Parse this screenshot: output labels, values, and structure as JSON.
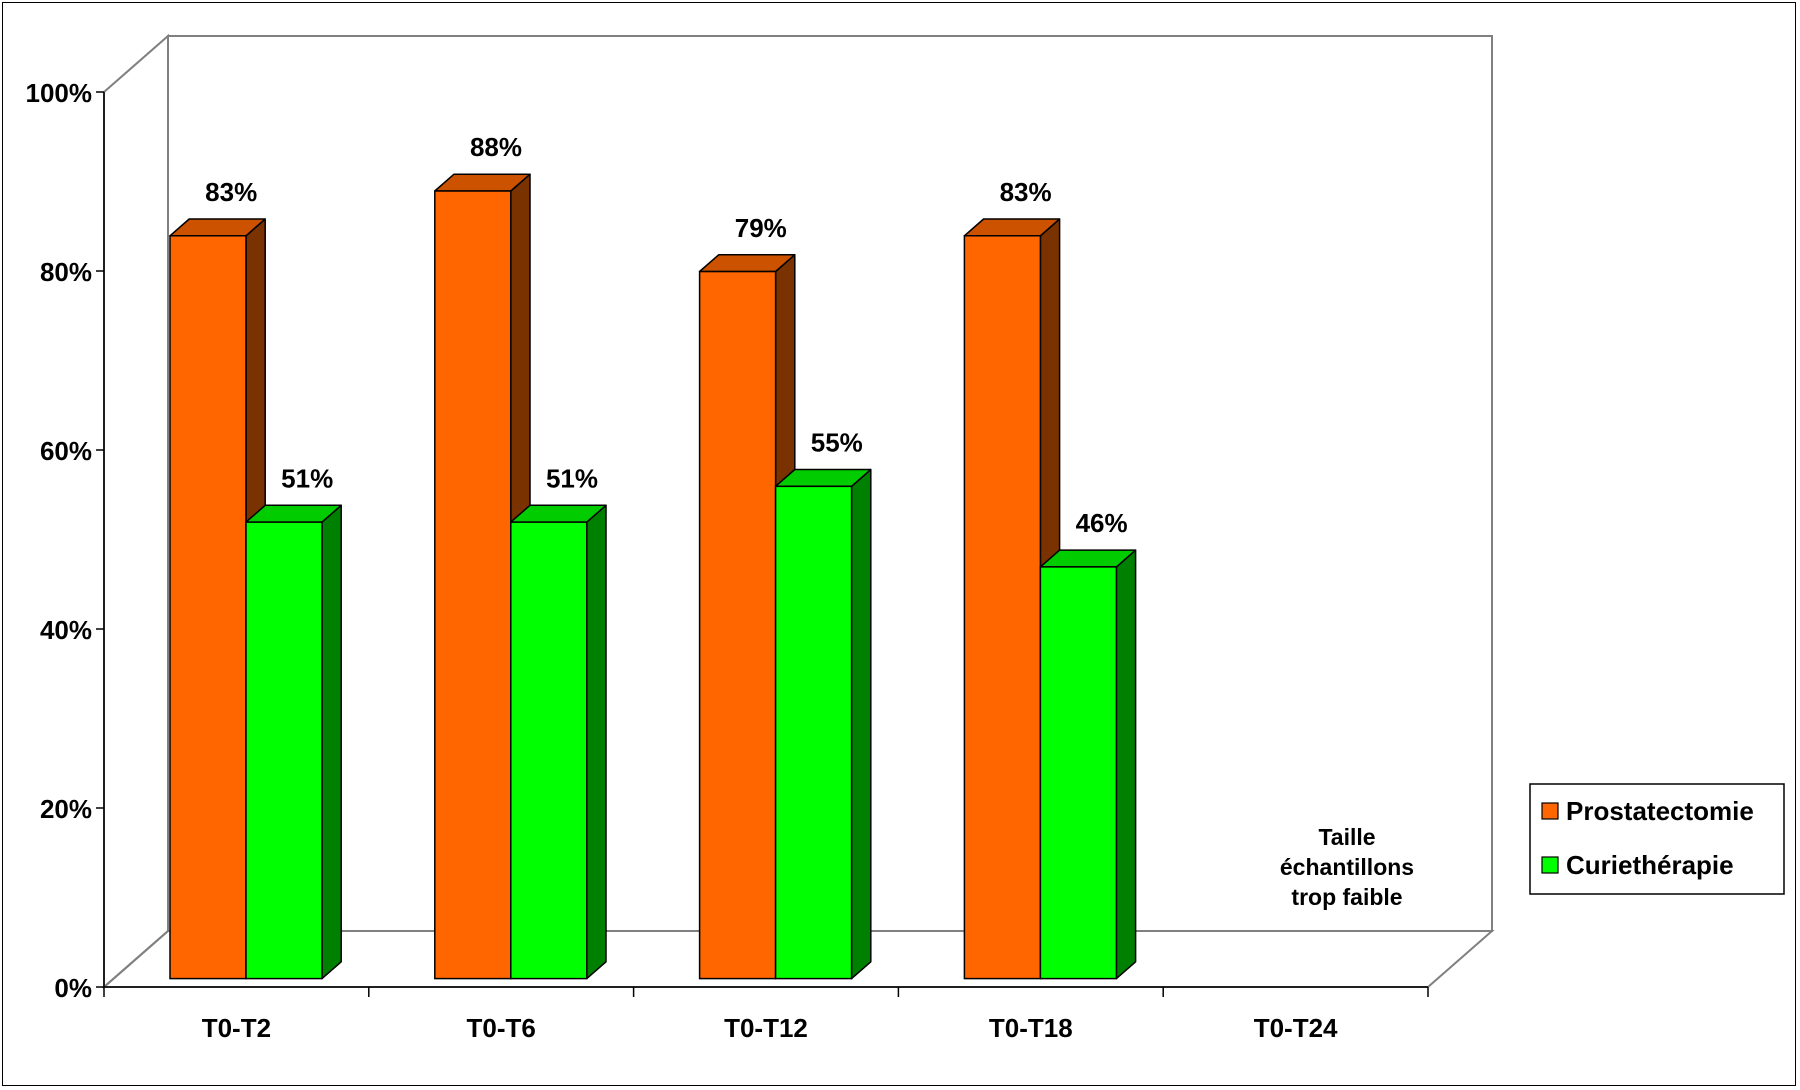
{
  "chart_data": {
    "type": "bar",
    "categories": [
      "T0-T2",
      "T0-T6",
      "T0-T12",
      "T0-T18",
      "T0-T24"
    ],
    "series": [
      {
        "name": "Prostatectomie",
        "values": [
          83,
          88,
          79,
          83,
          null
        ],
        "labels": [
          "83%",
          "88%",
          "79%",
          "83%",
          ""
        ]
      },
      {
        "name": "Curiethérapie",
        "values": [
          51,
          51,
          55,
          46,
          null
        ],
        "labels": [
          "51%",
          "51%",
          "55%",
          "46%",
          ""
        ]
      }
    ],
    "ylim": [
      0,
      100
    ],
    "yticks": [
      "0%",
      "20%",
      "40%",
      "60%",
      "80%",
      "100%"
    ],
    "grid": false,
    "legend": "right",
    "annotation": {
      "category": "T0-T24",
      "lines": [
        "Taille",
        "échantillons",
        "trop faible"
      ]
    },
    "colors": {
      "Prostatectomie": {
        "front": "#ff6600",
        "top": "#cc5200",
        "side": "#7a3300"
      },
      "Curiethérapie": {
        "front": "#00ff00",
        "top": "#00cc00",
        "side": "#008000"
      },
      "wall": "#808080",
      "axis": "#000000"
    }
  }
}
